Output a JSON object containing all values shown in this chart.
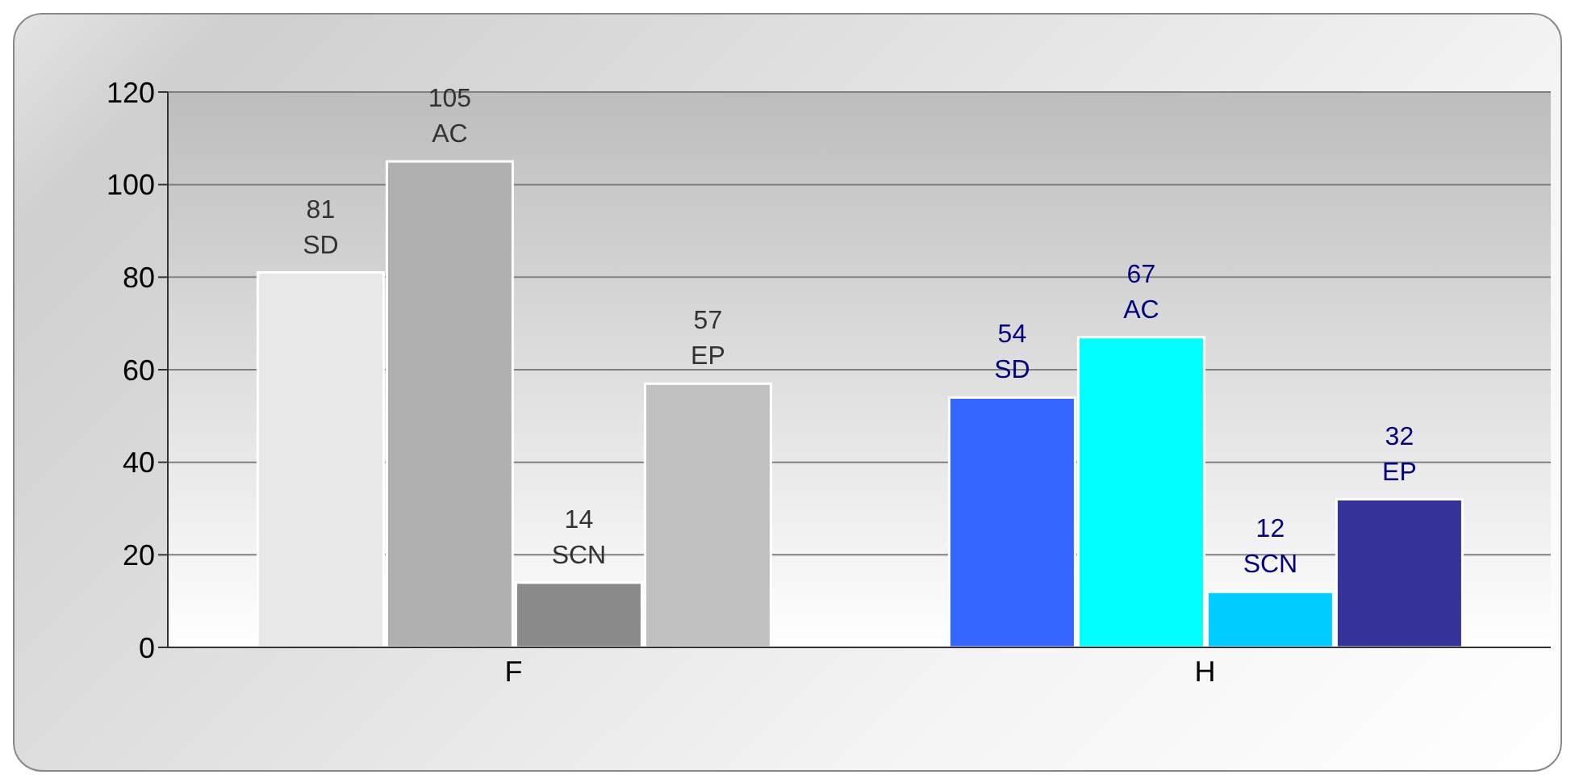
{
  "chart_data": {
    "type": "bar",
    "categories": [
      "F",
      "H"
    ],
    "series": [
      {
        "name": "SD",
        "values": [
          81,
          54
        ],
        "colors": [
          "#e8e8e8",
          "#3366ff"
        ]
      },
      {
        "name": "AC",
        "values": [
          105,
          67
        ],
        "colors": [
          "#b0b0b0",
          "#00ffff"
        ]
      },
      {
        "name": "SCN",
        "values": [
          14,
          12
        ],
        "colors": [
          "#8a8a8a",
          "#00ccff"
        ]
      },
      {
        "name": "EP",
        "values": [
          57,
          32
        ],
        "colors": [
          "#c0c0c0",
          "#333399"
        ]
      }
    ],
    "ylim": [
      0,
      120
    ],
    "yticks": [
      0,
      20,
      40,
      60,
      80,
      100,
      120
    ],
    "grid": "y",
    "legend": false,
    "data_labels": true
  }
}
